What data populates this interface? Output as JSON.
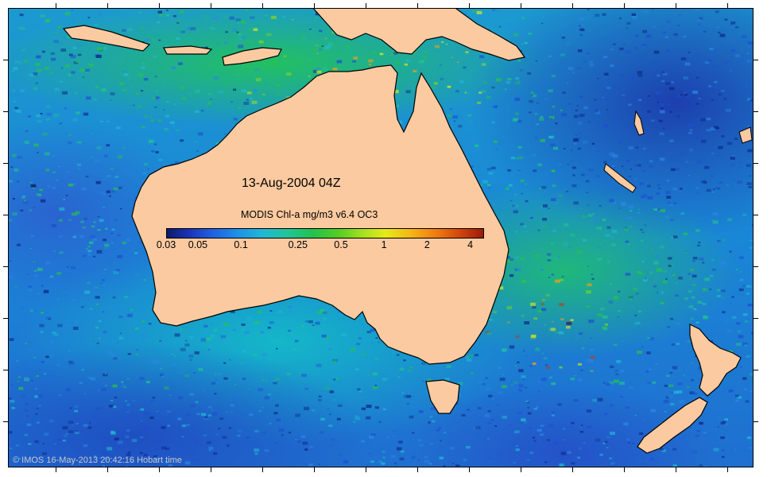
{
  "map": {
    "title": "13-Aug-2004 04Z",
    "colorbar": {
      "label": "MODIS Chl-a mg/m3 v6.4 OC3",
      "ticks": [
        "0.03",
        "0.05",
        "0.1",
        "0.25",
        "0.5",
        "1",
        "2",
        "4"
      ],
      "range": [
        0.03,
        5
      ],
      "scale": "log"
    },
    "credit": "© IMOS 16-May-2013 20:42:16 Hobart time",
    "colors": {
      "land": "#fccaa0",
      "coastline": "#000000",
      "low_chl": "#0c1b6a",
      "high_chl": "#9b1a0a"
    }
  }
}
